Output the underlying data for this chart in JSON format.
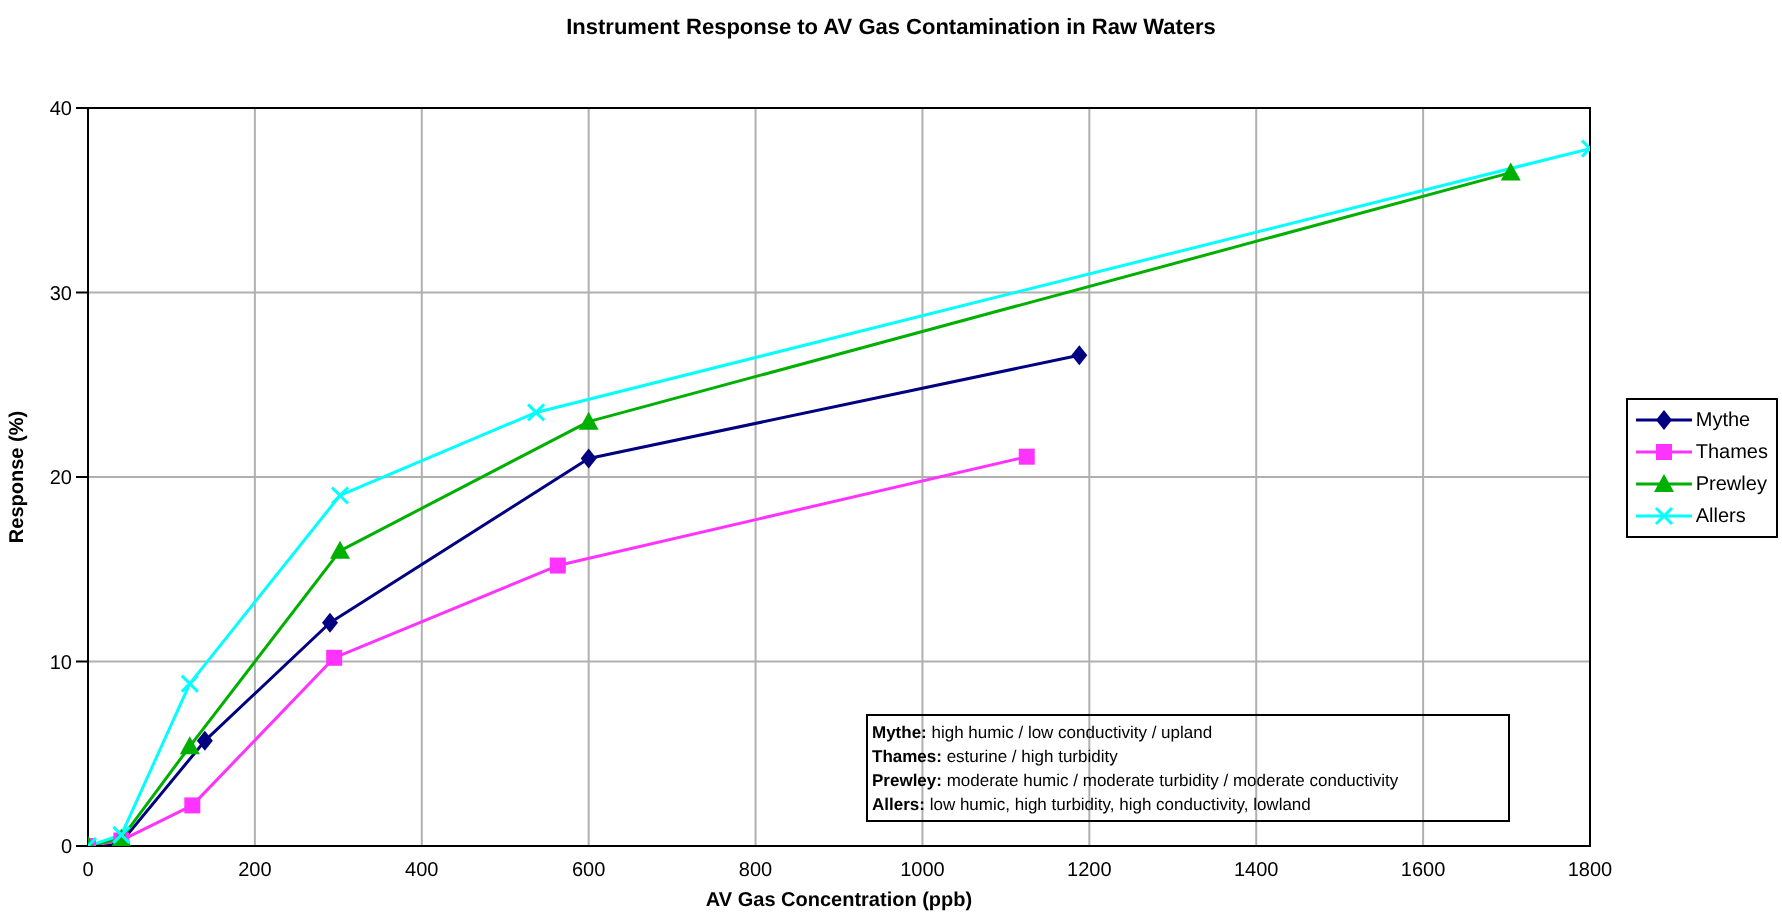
{
  "chart_data": {
    "type": "line",
    "title": "Instrument Response to AV Gas Contamination in Raw Waters",
    "xlabel": "AV Gas Concentration (ppb)",
    "ylabel": "Response (%)",
    "xlim": [
      0,
      1800
    ],
    "xticks": [
      0,
      200,
      400,
      600,
      800,
      1000,
      1200,
      1400,
      1600,
      1800
    ],
    "ylim": [
      0,
      40
    ],
    "yticks": [
      0,
      10,
      20,
      30,
      40
    ],
    "grid": true,
    "legend": "right",
    "series": [
      {
        "name": "Mythe",
        "color": "#000080",
        "marker": "diamond",
        "x": [
          0,
          38,
          140,
          290,
          600,
          1188
        ],
        "values": [
          0,
          0.1,
          5.7,
          12.1,
          21,
          26.6
        ]
      },
      {
        "name": "Thames",
        "color": "#ff33ff",
        "marker": "square",
        "x": [
          0,
          40,
          125,
          295,
          563,
          1125
        ],
        "values": [
          0,
          0.3,
          2.2,
          10.2,
          15.2,
          21.1
        ]
      },
      {
        "name": "Prewley",
        "color": "#00b000",
        "marker": "triangle",
        "x": [
          0,
          40,
          122,
          302,
          600,
          1705
        ],
        "values": [
          0,
          0.4,
          5.4,
          16,
          23,
          36.5
        ]
      },
      {
        "name": "Allers",
        "color": "#00ffff",
        "marker": "cross",
        "x": [
          0,
          40,
          122,
          302,
          537,
          1800
        ],
        "values": [
          0,
          0.6,
          8.8,
          19,
          23.5,
          37.8
        ]
      }
    ],
    "annotations": [
      "Mythe: high humic / low conductivity / upland",
      "Thames: esturine / high turbidity",
      "Prewley: moderate humic / moderate turbidity / moderate conductivity",
      "Allers: low humic, high turbidity, high conductivity, lowland"
    ]
  }
}
